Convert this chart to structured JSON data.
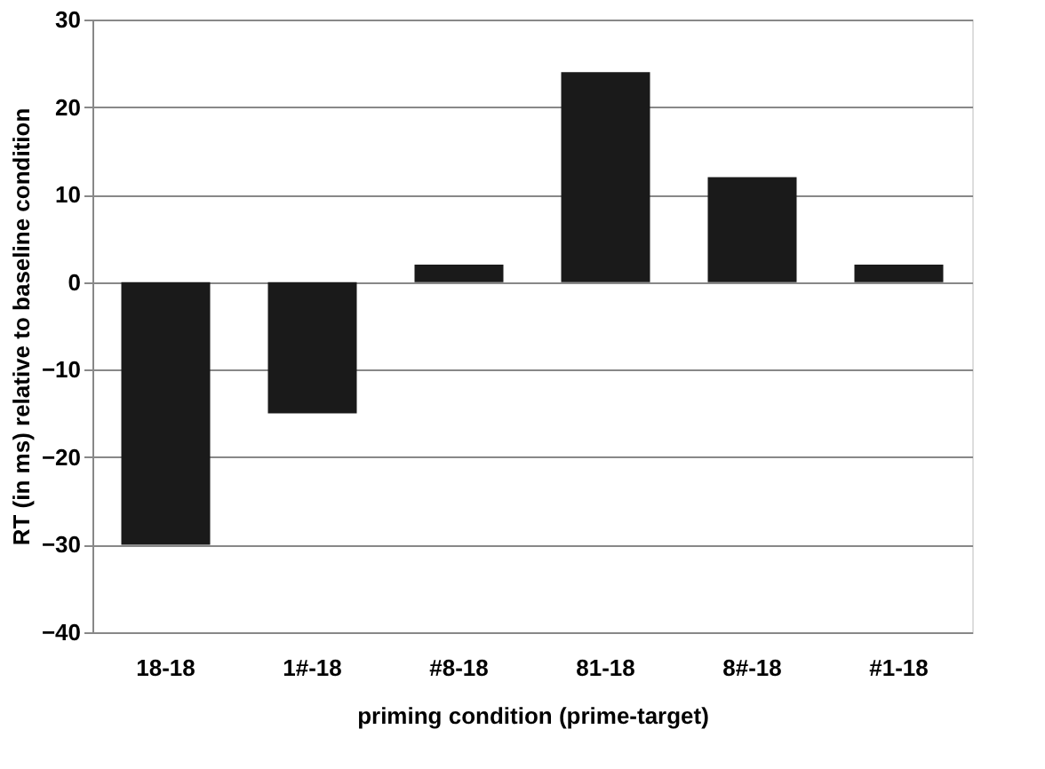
{
  "chart_data": {
    "type": "bar",
    "xlabel": "priming condition (prime-target)",
    "ylabel": "RT (in ms) relative to baseline condition",
    "categories": [
      "18-18",
      "1#-18",
      "#8-18",
      "81-18",
      "8#-18",
      "#1-18"
    ],
    "values": [
      -30,
      -15,
      2,
      24,
      12,
      2
    ],
    "color": "#1a1a1a",
    "ylim": [
      -40,
      30
    ],
    "yticks": [
      -40,
      -30,
      -20,
      -10,
      0,
      10,
      20,
      30
    ],
    "grid": "y"
  }
}
